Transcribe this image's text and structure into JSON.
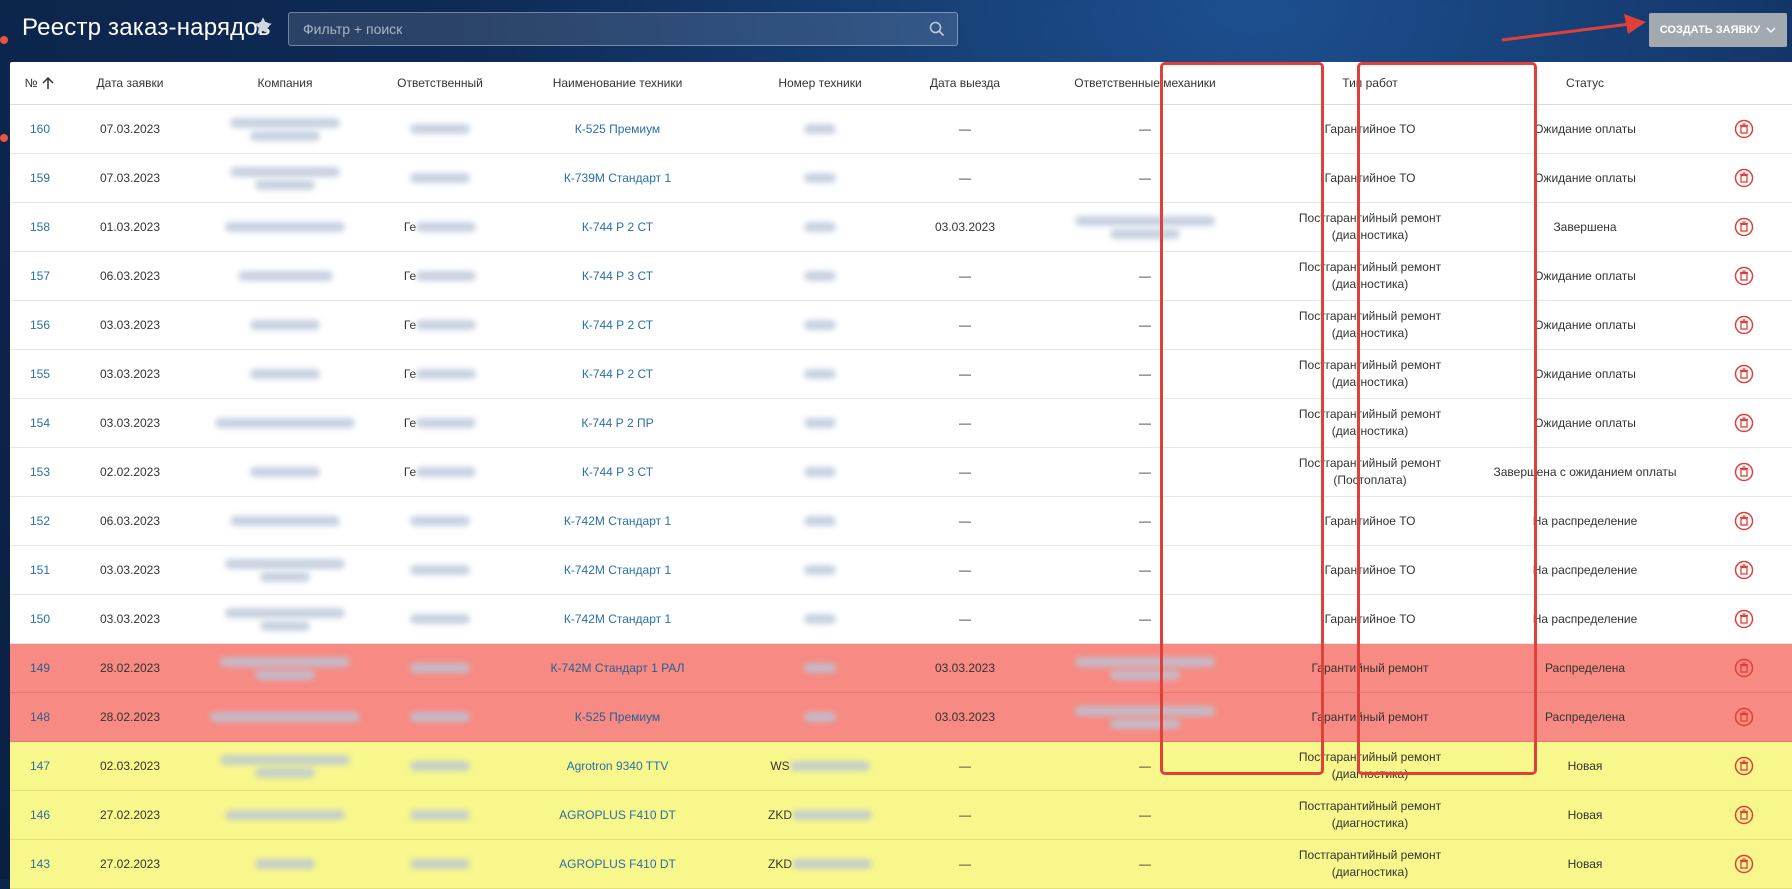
{
  "header": {
    "title": "Реестр заказ-нарядов",
    "search_placeholder": "Фильтр + поиск",
    "create_button": "СОЗДАТЬ ЗАЯВКУ"
  },
  "colors": {
    "annotation": "#e0403a",
    "row_red": "#f78a82",
    "row_yellow": "#f8f78c",
    "link": "#2a6fa8",
    "button": "#a2a9b1"
  },
  "table": {
    "columns": [
      "№",
      "Дата заявки",
      "Компания",
      "Ответственный",
      "Наименование техники",
      "Номер техники",
      "Дата выезда",
      "Ответственные механики",
      "Тип работ",
      "Статус"
    ],
    "rows": [
      {
        "num": "160",
        "date": "07.03.2023",
        "resp": "",
        "tech": "К-525 Премиум",
        "tech_no": "",
        "dep": "—",
        "mech": "—",
        "work": "Гарантийное ТО",
        "work2": "",
        "status": "Ожидание оплаты"
      },
      {
        "num": "159",
        "date": "07.03.2023",
        "resp": "",
        "tech": "К-739М Стандарт 1",
        "tech_no": "",
        "dep": "—",
        "mech": "—",
        "work": "Гарантийное ТО",
        "work2": "",
        "status": "Ожидание оплаты"
      },
      {
        "num": "158",
        "date": "01.03.2023",
        "resp": "Ге",
        "tech": "К-744 Р 2 СТ",
        "tech_no": "",
        "dep": "03.03.2023",
        "mech": "",
        "work": "Постгарантийный ремонт",
        "work2": "(диагностика)",
        "status": "Завершена"
      },
      {
        "num": "157",
        "date": "06.03.2023",
        "resp": "Ге",
        "tech": "К-744 Р 3 СТ",
        "tech_no": "",
        "dep": "—",
        "mech": "—",
        "work": "Постгарантийный ремонт",
        "work2": "(диагностика)",
        "status": "Ожидание оплаты"
      },
      {
        "num": "156",
        "date": "03.03.2023",
        "resp": "Ге",
        "tech": "К-744 Р 2 СТ",
        "tech_no": "",
        "dep": "—",
        "mech": "—",
        "work": "Постгарантийный ремонт",
        "work2": "(диагностика)",
        "status": "Ожидание оплаты"
      },
      {
        "num": "155",
        "date": "03.03.2023",
        "resp": "Ге",
        "tech": "К-744 Р 2 СТ",
        "tech_no": "",
        "dep": "—",
        "mech": "—",
        "work": "Постгарантийный ремонт",
        "work2": "(диагностика)",
        "status": "Ожидание оплаты"
      },
      {
        "num": "154",
        "date": "03.03.2023",
        "resp": "Ге",
        "tech": "К-744 Р 2 ПР",
        "tech_no": "",
        "dep": "—",
        "mech": "—",
        "work": "Постгарантийный ремонт",
        "work2": "(диагностика)",
        "status": "Ожидание оплаты"
      },
      {
        "num": "153",
        "date": "02.02.2023",
        "resp": "Ге",
        "tech": "К-744 Р 3 СТ",
        "tech_no": "",
        "dep": "—",
        "mech": "—",
        "work": "Постгарантийный ремонт",
        "work2": "(Постоплата)",
        "status": "Завершена с ожиданием оплаты"
      },
      {
        "num": "152",
        "date": "06.03.2023",
        "resp": "",
        "tech": "К-742М Стандарт 1",
        "tech_no": "",
        "dep": "—",
        "mech": "—",
        "work": "Гарантийное ТО",
        "work2": "",
        "status": "На распределение"
      },
      {
        "num": "151",
        "date": "03.03.2023",
        "resp": "",
        "tech": "К-742М Стандарт 1",
        "tech_no": "",
        "dep": "—",
        "mech": "—",
        "work": "Гарантийное ТО",
        "work2": "",
        "status": "На распределение"
      },
      {
        "num": "150",
        "date": "03.03.2023",
        "resp": "",
        "tech": "К-742М Стандарт 1",
        "tech_no": "",
        "dep": "—",
        "mech": "—",
        "work": "Гарантийное ТО",
        "work2": "",
        "status": "На распределение"
      },
      {
        "num": "149",
        "date": "28.02.2023",
        "resp": "",
        "tech": "К-742М Стандарт 1 РАЛ",
        "tech_no": "",
        "dep": "03.03.2023",
        "mech": "",
        "work": "Гарантийный ремонт",
        "work2": "",
        "status": "Распределена",
        "hl": "red"
      },
      {
        "num": "148",
        "date": "28.02.2023",
        "resp": "",
        "tech": "К-525 Премиум",
        "tech_no": "",
        "dep": "03.03.2023",
        "mech": "",
        "work": "Гарантийный ремонт",
        "work2": "",
        "status": "Распределена",
        "hl": "red"
      },
      {
        "num": "147",
        "date": "02.03.2023",
        "resp": "",
        "tech": "Agrotron 9340 TTV",
        "tech_no": "WS",
        "dep": "—",
        "mech": "—",
        "work": "Постгарантийный ремонт",
        "work2": "(диагностика)",
        "status": "Новая",
        "hl": "yellow"
      },
      {
        "num": "146",
        "date": "27.02.2023",
        "resp": "",
        "tech": "AGROPLUS F410 DT",
        "tech_no": "ZKD",
        "dep": "—",
        "mech": "—",
        "work": "Постгарантийный ремонт",
        "work2": "(диагностика)",
        "status": "Новая",
        "hl": "yellow"
      },
      {
        "num": "143",
        "date": "27.02.2023",
        "resp": "",
        "tech": "AGROPLUS F410 DT",
        "tech_no": "ZKD",
        "dep": "—",
        "mech": "—",
        "work": "Постгарантийный ремонт",
        "work2": "(диагностика)",
        "status": "Новая",
        "hl": "yellow"
      }
    ]
  }
}
